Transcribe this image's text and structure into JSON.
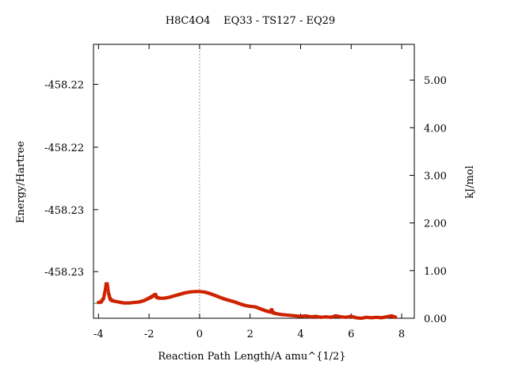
{
  "chart_data": {
    "type": "line",
    "title": "H8C4O4    EQ33 - TS127 - EQ29",
    "xlabel": "Reaction Path Length/A amu^{1/2}",
    "ylabel_left": "Energy/Hartree",
    "ylabel_right": "kJ/mol",
    "xlim": [
      -4.2,
      8.5
    ],
    "ylim_right": [
      0.0,
      5.75
    ],
    "x_ticks": [
      -4,
      -2,
      0,
      2,
      4,
      6,
      8
    ],
    "x_tick_labels": [
      "-4",
      "-2",
      "0",
      "2",
      "4",
      "6",
      "8"
    ],
    "y_right_ticks": [
      0.0,
      1.0,
      2.0,
      3.0,
      4.0,
      5.0
    ],
    "y_right_tick_labels": [
      "0.00",
      "1.00",
      "2.00",
      "3.00",
      "4.00",
      "5.00"
    ],
    "y_left_tick_positions_kj": [
      0.98,
      2.28,
      3.59,
      4.91
    ],
    "y_left_tick_labels": [
      "-458.23",
      "-458.23",
      "-458.22",
      "-458.22"
    ],
    "ts_x": 0.0,
    "line_color": "#2ca02c",
    "marker_color": "#cc2200",
    "grid": false,
    "series": [
      {
        "values_x": [
          -4.2,
          -4.0,
          -3.9,
          -3.8,
          -3.75,
          -3.7,
          -3.65,
          -3.6,
          -3.55,
          -3.5,
          -3.4,
          -3.2,
          -3.0,
          -2.8,
          -2.6,
          -2.4,
          -2.2,
          -2.0,
          -1.9,
          -1.8,
          -1.75,
          -1.7,
          -1.6,
          -1.4,
          -1.2,
          -1.0,
          -0.8,
          -0.6,
          -0.4,
          -0.2,
          0.0,
          0.2,
          0.4,
          0.6,
          0.8,
          1.0,
          1.2,
          1.4,
          1.6,
          1.8,
          2.0,
          2.2,
          2.4,
          2.6,
          2.8,
          2.85,
          2.9,
          3.0,
          3.2,
          3.4,
          3.6,
          3.8,
          4.0,
          4.2,
          4.4,
          4.6,
          4.8,
          5.0,
          5.2,
          5.4,
          5.6,
          5.8,
          6.0,
          6.2,
          6.4,
          6.6,
          6.8,
          7.0,
          7.2,
          7.4,
          7.6,
          7.75
        ],
        "values_y": [
          0.3,
          0.33,
          0.34,
          0.42,
          0.55,
          0.72,
          0.72,
          0.52,
          0.42,
          0.38,
          0.36,
          0.34,
          0.32,
          0.32,
          0.33,
          0.34,
          0.37,
          0.42,
          0.45,
          0.48,
          0.5,
          0.44,
          0.42,
          0.42,
          0.44,
          0.47,
          0.5,
          0.53,
          0.55,
          0.56,
          0.56,
          0.55,
          0.52,
          0.48,
          0.44,
          0.4,
          0.37,
          0.34,
          0.3,
          0.27,
          0.25,
          0.24,
          0.2,
          0.16,
          0.13,
          0.18,
          0.12,
          0.1,
          0.08,
          0.07,
          0.06,
          0.05,
          0.04,
          0.05,
          0.03,
          0.04,
          0.02,
          0.03,
          0.02,
          0.05,
          0.03,
          0.02,
          0.04,
          0.01,
          0.0,
          0.02,
          0.01,
          0.02,
          0.01,
          0.03,
          0.05,
          0.02
        ]
      }
    ]
  }
}
